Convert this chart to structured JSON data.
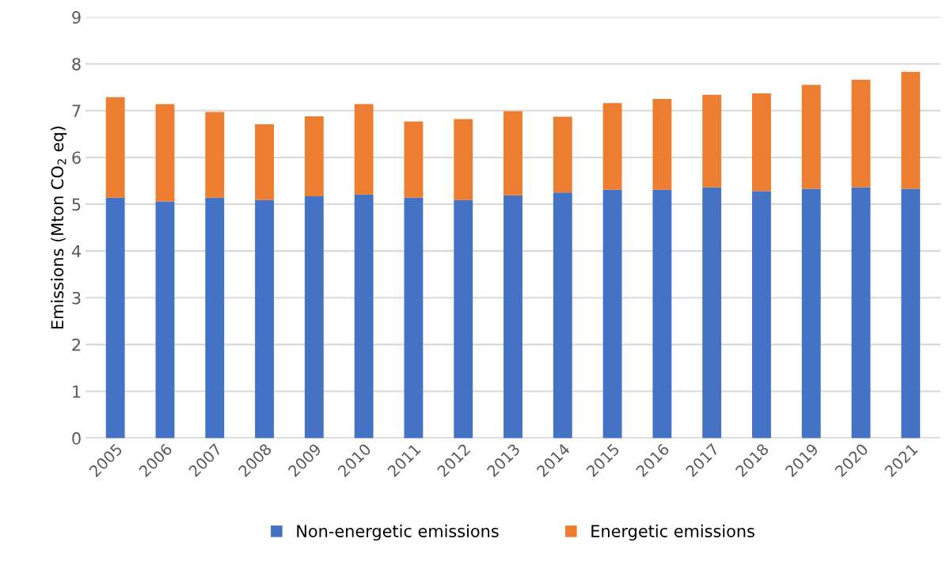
{
  "chart_data": {
    "type": "bar",
    "stacked": true,
    "ylabel": "Emissions (Mton CO$_{2}$ eq)",
    "categories": [
      "2005",
      "2006",
      "2007",
      "2008",
      "2009",
      "2010",
      "2011",
      "2012",
      "2013",
      "2014",
      "2015",
      "2016",
      "2017",
      "2018",
      "2019",
      "2020",
      "2021"
    ],
    "series": [
      {
        "name": "Non-energetic emissions",
        "color": "#4472c4",
        "values": [
          5.14,
          5.06,
          5.14,
          5.09,
          5.17,
          5.21,
          5.14,
          5.09,
          5.19,
          5.25,
          5.31,
          5.31,
          5.36,
          5.28,
          5.33,
          5.36,
          5.33
        ]
      },
      {
        "name": "Energetic emissions",
        "color": "#ed7d31",
        "values": [
          2.15,
          2.08,
          1.83,
          1.62,
          1.71,
          1.93,
          1.63,
          1.73,
          1.8,
          1.62,
          1.85,
          1.94,
          1.98,
          2.09,
          2.22,
          2.3,
          2.5
        ]
      }
    ],
    "ylim": [
      0,
      9
    ],
    "yticks": [
      0,
      1,
      2,
      3,
      4,
      5,
      6,
      7,
      8,
      9
    ],
    "grid": "y",
    "legend": "bottom"
  }
}
